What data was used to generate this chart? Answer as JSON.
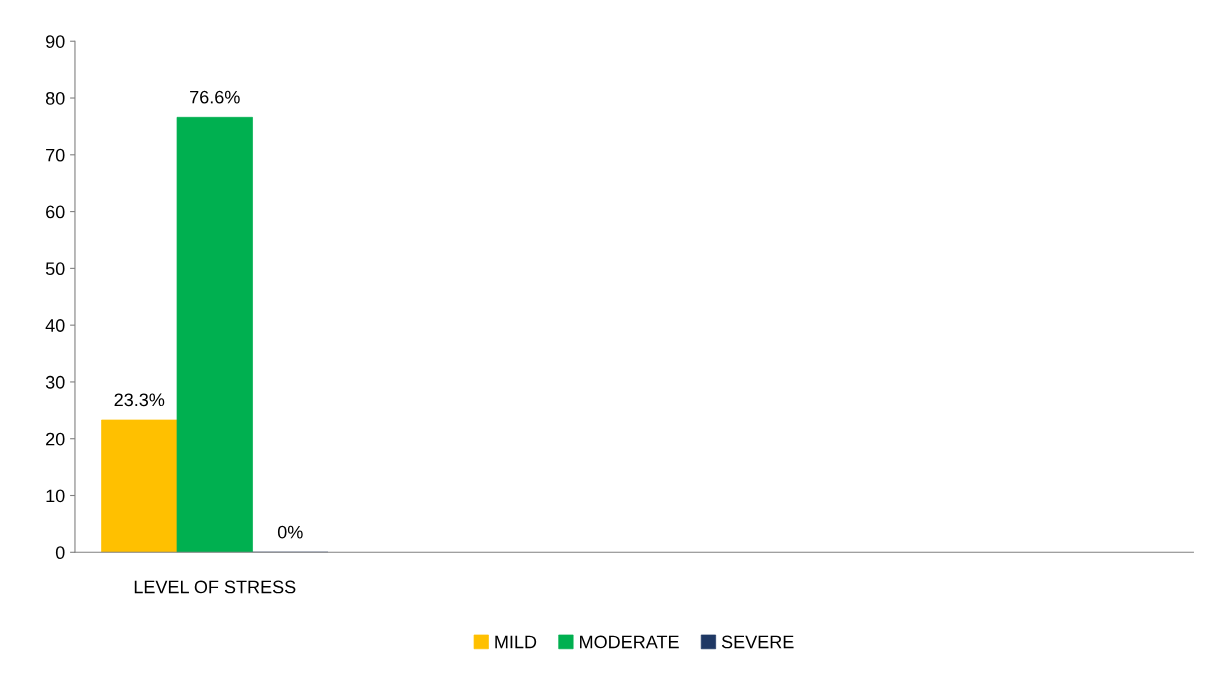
{
  "chart_data": {
    "type": "bar",
    "categories": [
      "LEVEL OF STRESS",
      null,
      null,
      null
    ],
    "series": [
      {
        "name": "MILD",
        "color": "#ffc000",
        "values": [
          23.3,
          null,
          null,
          null
        ],
        "value_labels": [
          "23.3%",
          null,
          null,
          null
        ]
      },
      {
        "name": "MODERATE",
        "color": "#00b050",
        "values": [
          76.6,
          null,
          null,
          null
        ],
        "value_labels": [
          "76.6%",
          null,
          null,
          null
        ]
      },
      {
        "name": "SEVERE",
        "color": "#1f3864",
        "values": [
          0,
          null,
          null,
          null
        ],
        "value_labels": [
          "0%",
          null,
          null,
          null
        ]
      }
    ],
    "ylim": [
      0,
      90
    ],
    "yticks": [
      0,
      10,
      20,
      30,
      40,
      50,
      60,
      70,
      80,
      90
    ],
    "grid": false,
    "legend": "bottom"
  }
}
